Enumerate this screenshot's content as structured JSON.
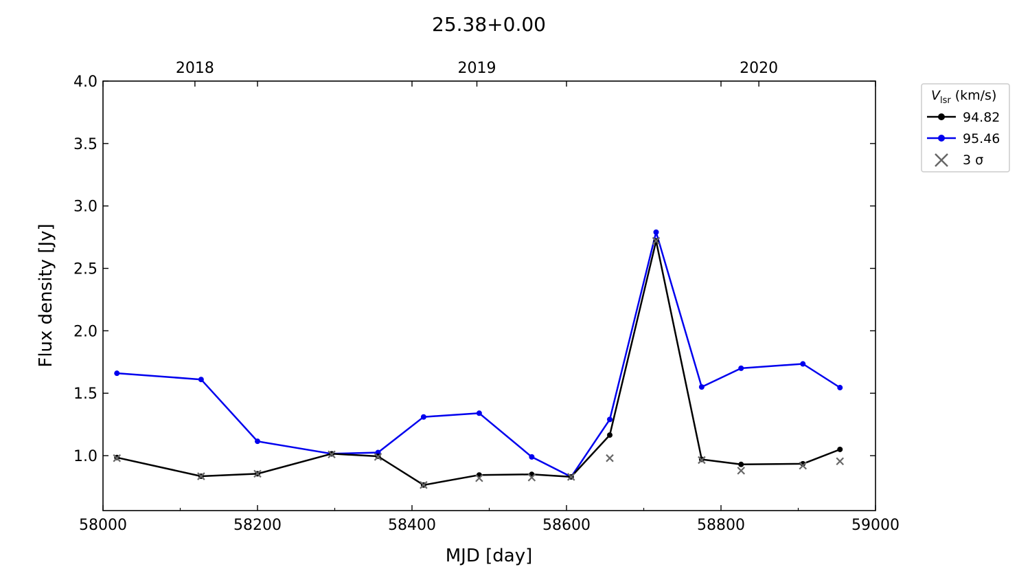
{
  "chart_data": {
    "type": "line",
    "title": "25.38+0.00",
    "xlabel": "MJD [day]",
    "ylabel": "Flux density [Jy]",
    "xlim": [
      58000,
      59000
    ],
    "ylim": [
      0.56,
      4.0
    ],
    "x_ticks": [
      58000,
      58200,
      58400,
      58600,
      58800,
      59000
    ],
    "x_ticks_labels": [
      "58000",
      "58200",
      "58400",
      "58600",
      "58800",
      "59000"
    ],
    "y_ticks": [
      1.0,
      1.5,
      2.0,
      2.5,
      3.0,
      3.5,
      4.0
    ],
    "y_ticks_labels": [
      "1.0",
      "1.5",
      "2.0",
      "2.5",
      "3.0",
      "3.5",
      "4.0"
    ],
    "top_axis": {
      "ticks": [
        58119,
        58484,
        58849
      ],
      "labels": [
        "2018",
        "2019",
        "2020"
      ]
    },
    "grid": false,
    "legend": {
      "title_var": "V",
      "title_sub": "lsr",
      "title_unit": "(km/s)",
      "placement": "outside-right",
      "entries": [
        "94.82",
        "95.46",
        "3 σ"
      ]
    },
    "series": [
      {
        "name": "94.82",
        "color": "#000000",
        "x": [
          58018,
          58127,
          58200,
          58296,
          58356,
          58415,
          58487,
          58555,
          58606,
          58656,
          58716,
          58775,
          58826,
          58906,
          58954
        ],
        "values": [
          0.985,
          0.835,
          0.855,
          1.015,
          0.995,
          0.765,
          0.845,
          0.85,
          0.83,
          1.165,
          2.72,
          0.97,
          0.93,
          0.935,
          1.05
        ]
      },
      {
        "name": "95.46",
        "color": "#0000ee",
        "x": [
          58018,
          58127,
          58200,
          58296,
          58356,
          58415,
          58487,
          58555,
          58606,
          58656,
          58716,
          58775,
          58826,
          58906,
          58954
        ],
        "values": [
          1.66,
          1.61,
          1.115,
          1.015,
          1.025,
          1.31,
          1.34,
          0.99,
          0.83,
          1.29,
          2.79,
          1.55,
          1.7,
          1.735,
          1.545
        ]
      }
    ],
    "sigma3": {
      "name": "3 σ",
      "color": "#666666",
      "x": [
        58018,
        58127,
        58200,
        58296,
        58356,
        58415,
        58487,
        58555,
        58606,
        58656,
        58716,
        58775,
        58826,
        58906,
        58954
      ],
      "values": [
        0.98,
        0.835,
        0.855,
        1.01,
        0.99,
        0.765,
        0.82,
        0.825,
        0.83,
        0.98,
        2.72,
        0.965,
        0.88,
        0.92,
        0.955
      ]
    }
  }
}
